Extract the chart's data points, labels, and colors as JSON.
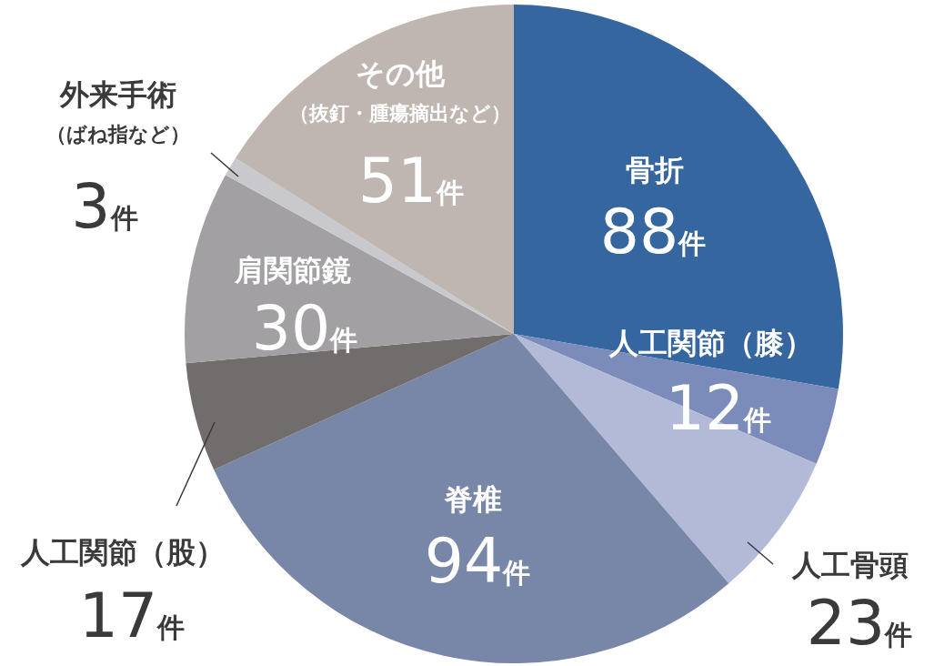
{
  "chart_data": {
    "type": "pie",
    "categories": [
      "骨折",
      "人工関節（膝）",
      "人工骨頭",
      "脊椎",
      "人工関節（股）",
      "肩関節鏡",
      "外来手術（ばね指など）",
      "その他（抜釘・腫瘍摘出など）"
    ],
    "values": [
      88,
      12,
      23,
      94,
      17,
      30,
      3,
      51
    ],
    "colors": [
      "#3566a0",
      "#7b8cbb",
      "#b3bad8",
      "#7886a8",
      "#716d6c",
      "#a2a0a3",
      "#c9c8cc",
      "#bfb6b2"
    ],
    "value_labels": [
      "88件",
      "12件",
      "23件",
      "94件",
      "17件",
      "30件",
      "3件",
      "51件"
    ]
  }
}
